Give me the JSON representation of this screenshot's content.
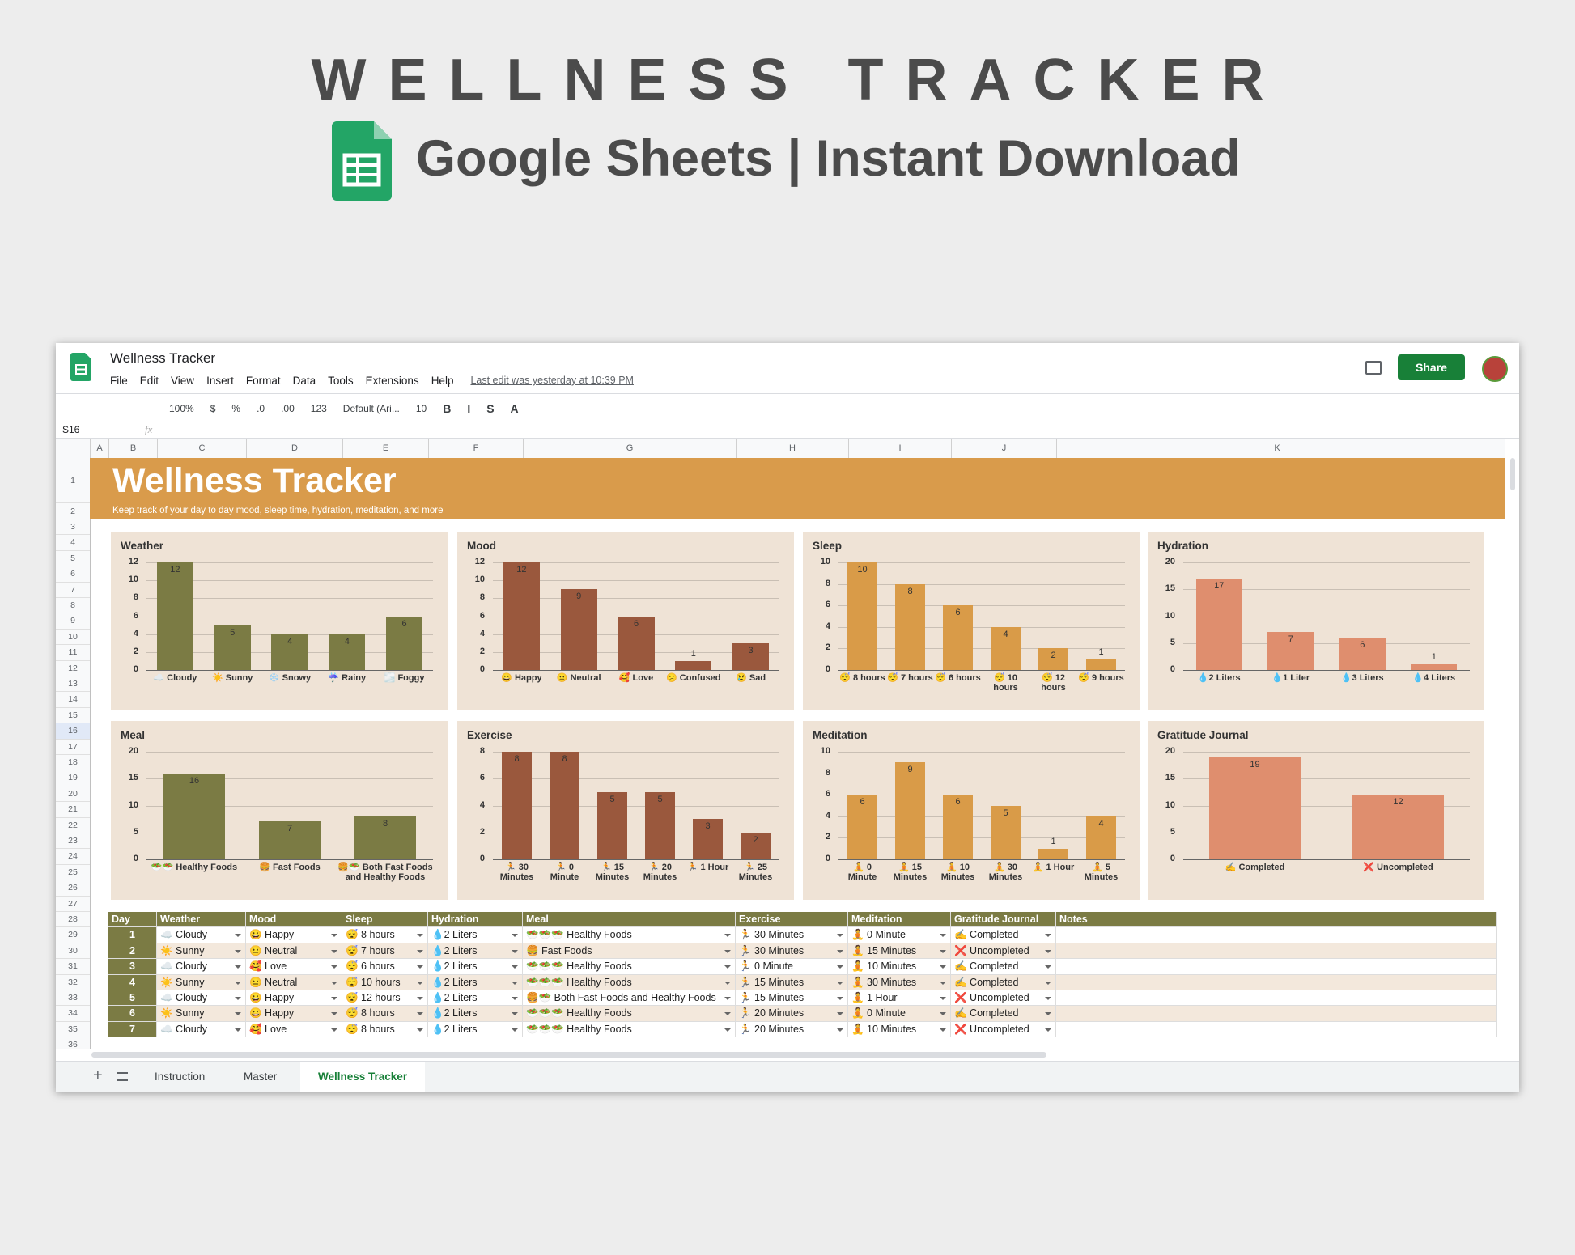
{
  "promo": {
    "title": "WELLNESS TRACKER",
    "subtitle": "Google Sheets | Instant Download"
  },
  "ui": {
    "doc_title": "Wellness Tracker",
    "menus": [
      "File",
      "Edit",
      "View",
      "Insert",
      "Format",
      "Data",
      "Tools",
      "Extensions",
      "Help"
    ],
    "last_edit": "Last edit was yesterday at 10:39 PM",
    "share": "Share",
    "toolbar": [
      "100%",
      "$",
      "%",
      ".0",
      ".00",
      "123",
      "Default (Ari...",
      "10",
      "B",
      "I",
      "S",
      "A"
    ],
    "name_box": "S16",
    "fx": "fx",
    "sheet_tabs": [
      "Instruction",
      "Master",
      "Wellness Tracker"
    ]
  },
  "sheet": {
    "columns": [
      "A",
      "B",
      "C",
      "D",
      "E",
      "F",
      "G",
      "H",
      "I",
      "J",
      "K"
    ],
    "rows": [
      1,
      2,
      3,
      4,
      5,
      6,
      7,
      8,
      9,
      10,
      11,
      12,
      13,
      14,
      15,
      16,
      17,
      18,
      19,
      20,
      21,
      22,
      23,
      24,
      25,
      26,
      27,
      28,
      29,
      30,
      31,
      32,
      33,
      34,
      35,
      36
    ],
    "banner_title": "Wellness Tracker",
    "banner_subtitle": "Keep track of your day to day mood, sleep time, hydration, meditation, and more"
  },
  "chart_data": [
    {
      "type": "bar",
      "title": "Weather",
      "categories": [
        "☁️ Cloudy",
        "☀️ Sunny",
        "❄️ Snowy",
        "☔ Rainy",
        "🌫️ Foggy"
      ],
      "values": [
        12,
        5,
        4,
        4,
        6
      ],
      "color": "#7b7b44",
      "ylim": [
        0,
        12
      ],
      "yticks": [
        0,
        2,
        4,
        6,
        8,
        10,
        12
      ],
      "grid": true
    },
    {
      "type": "bar",
      "title": "Mood",
      "categories": [
        "😀 Happy",
        "😐 Neutral",
        "🥰 Love",
        "😕 Confused",
        "😢 Sad"
      ],
      "values": [
        12,
        9,
        6,
        1,
        3
      ],
      "color": "#9a583d",
      "ylim": [
        0,
        12
      ],
      "yticks": [
        0,
        2,
        4,
        6,
        8,
        10,
        12
      ],
      "grid": true
    },
    {
      "type": "bar",
      "title": "Sleep",
      "categories": [
        "😴 8 hours",
        "😴 7 hours",
        "😴 6 hours",
        "😴 10 hours",
        "😴 12 hours",
        "😴 9 hours"
      ],
      "values": [
        10,
        8,
        6,
        4,
        2,
        1
      ],
      "color": "#d99b48",
      "ylim": [
        0,
        10
      ],
      "yticks": [
        0,
        2,
        4,
        6,
        8,
        10
      ],
      "grid": true
    },
    {
      "type": "bar",
      "title": "Hydration",
      "categories": [
        "💧2 Liters",
        "💧1 Liter",
        "💧3 Liters",
        "💧4 Liters"
      ],
      "values": [
        17,
        7,
        6,
        1
      ],
      "color": "#df8e6e",
      "ylim": [
        0,
        20
      ],
      "yticks": [
        0,
        5,
        10,
        15,
        20
      ],
      "grid": true
    },
    {
      "type": "bar",
      "title": "Meal",
      "categories": [
        "🥗🥗 Healthy Foods",
        "🍔 Fast Foods",
        "🍔🥗 Both Fast Foods and Healthy Foods"
      ],
      "values": [
        16,
        7,
        8
      ],
      "color": "#7b7b44",
      "ylim": [
        0,
        20
      ],
      "yticks": [
        0,
        5,
        10,
        15,
        20
      ],
      "grid": true
    },
    {
      "type": "bar",
      "title": "Exercise",
      "categories": [
        "🏃 30 Minutes",
        "🏃 0 Minute",
        "🏃 15 Minutes",
        "🏃 20 Minutes",
        "🏃 1 Hour",
        "🏃 25 Minutes"
      ],
      "values": [
        8,
        8,
        5,
        5,
        3,
        2
      ],
      "color": "#9a583d",
      "ylim": [
        0,
        8
      ],
      "yticks": [
        0,
        2,
        4,
        6,
        8
      ],
      "grid": true
    },
    {
      "type": "bar",
      "title": "Meditation",
      "categories": [
        "🧘 0 Minute",
        "🧘 15 Minutes",
        "🧘 10 Minutes",
        "🧘 30 Minutes",
        "🧘 1 Hour",
        "🧘 5 Minutes"
      ],
      "values": [
        6,
        9,
        6,
        5,
        1,
        4
      ],
      "color": "#d99b48",
      "ylim": [
        0,
        10
      ],
      "yticks": [
        0,
        2,
        4,
        6,
        8,
        10
      ],
      "grid": true
    },
    {
      "type": "bar",
      "title": "Gratitude Journal",
      "categories": [
        "✍️ Completed",
        "❌ Uncompleted"
      ],
      "values": [
        19,
        12
      ],
      "color": "#df8e6e",
      "ylim": [
        0,
        20
      ],
      "yticks": [
        0,
        5,
        10,
        15,
        20
      ],
      "grid": true
    }
  ],
  "table": {
    "columns": [
      "Day",
      "Weather",
      "Mood",
      "Sleep",
      "Hydration",
      "Meal",
      "Exercise",
      "Meditation",
      "Gratitude Journal",
      "Notes"
    ],
    "rows": [
      [
        1,
        "☁️ Cloudy",
        "😀 Happy",
        "😴 8 hours",
        "💧2 Liters",
        "🥗🥗🥗 Healthy Foods",
        "🏃 30 Minutes",
        "🧘 0 Minute",
        "✍️ Completed"
      ],
      [
        2,
        "☀️ Sunny",
        "😐 Neutral",
        "😴 7 hours",
        "💧2 Liters",
        "🍔 Fast Foods",
        "🏃 30 Minutes",
        "🧘 15 Minutes",
        "❌ Uncompleted"
      ],
      [
        3,
        "☁️ Cloudy",
        "🥰 Love",
        "😴 6 hours",
        "💧2 Liters",
        "🥗🥗🥗 Healthy Foods",
        "🏃 0 Minute",
        "🧘 10 Minutes",
        "✍️ Completed"
      ],
      [
        4,
        "☀️ Sunny",
        "😐 Neutral",
        "😴 10 hours",
        "💧2 Liters",
        "🥗🥗🥗 Healthy Foods",
        "🏃 15 Minutes",
        "🧘 30 Minutes",
        "✍️ Completed"
      ],
      [
        5,
        "☁️ Cloudy",
        "😀 Happy",
        "😴 12 hours",
        "💧2 Liters",
        "🍔🥗 Both Fast Foods and Healthy Foods",
        "🏃 15 Minutes",
        "🧘 1 Hour",
        "❌ Uncompleted"
      ],
      [
        6,
        "☀️ Sunny",
        "😀 Happy",
        "😴 8 hours",
        "💧2 Liters",
        "🥗🥗🥗 Healthy Foods",
        "🏃 20 Minutes",
        "🧘 0 Minute",
        "✍️ Completed"
      ],
      [
        7,
        "☁️ Cloudy",
        "🥰 Love",
        "😴 8 hours",
        "💧2 Liters",
        "🥗🥗🥗 Healthy Foods",
        "🏃 20 Minutes",
        "🧘 10 Minutes",
        "❌ Uncompleted"
      ]
    ]
  }
}
